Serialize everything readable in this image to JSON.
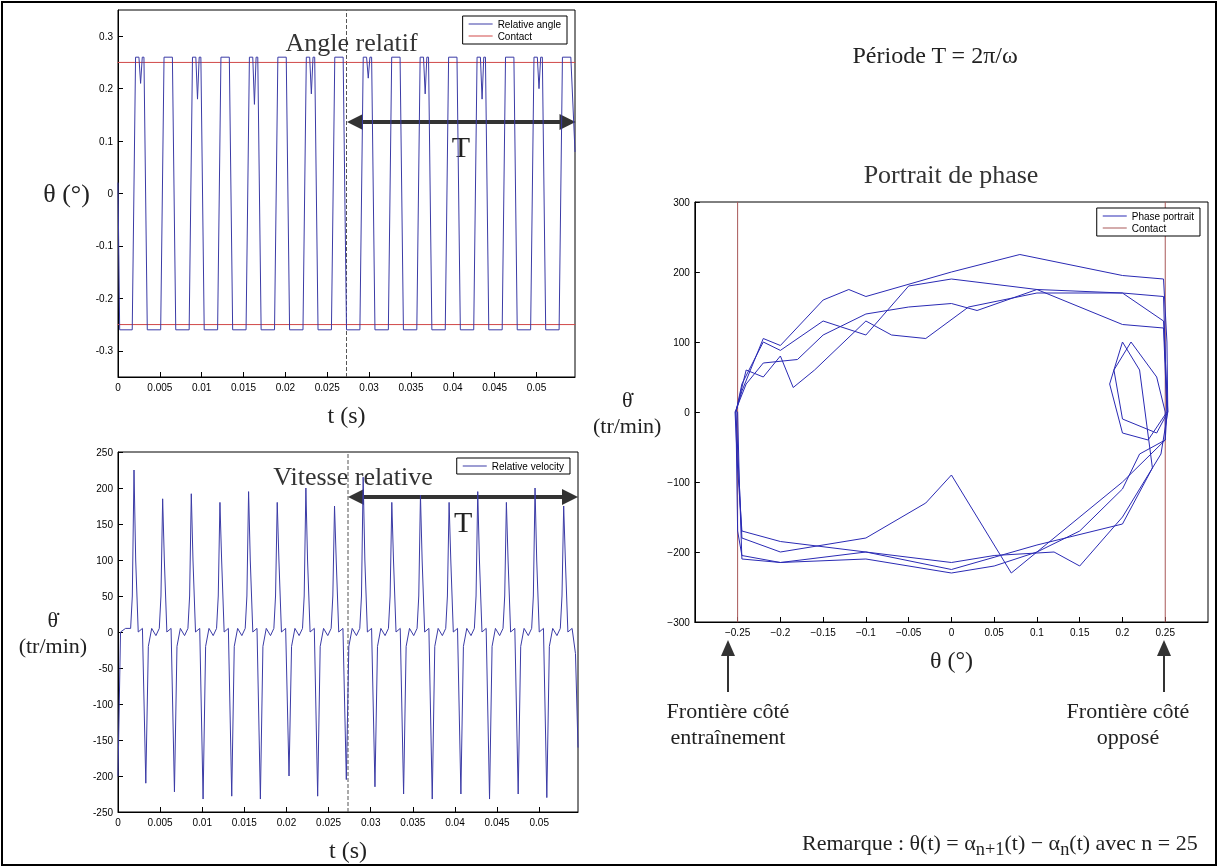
{
  "chart_data": [
    {
      "type": "line",
      "title": "Angle relatif",
      "xlabel": "t (s)",
      "ylabel": "θ (°)",
      "xlim": [
        0,
        0.0546
      ],
      "xticks": [
        0,
        0.005,
        0.01,
        0.015,
        0.02,
        0.025,
        0.03,
        0.035,
        0.04,
        0.045,
        0.05
      ],
      "ylim": [
        -0.35,
        0.35
      ],
      "yticks": [
        -0.3,
        -0.2,
        -0.1,
        0,
        0.1,
        0.2,
        0.3
      ],
      "legend": "top right",
      "series": [
        {
          "name": "Relative angle",
          "color": "#3b3ba6",
          "x": [
            0,
            0.0002,
            0.0017,
            0.0021,
            0.0025,
            0.0027,
            0.0029,
            0.0031,
            0.0035,
            0.0051,
            0.0055,
            0.0065,
            0.0069,
            0.0085,
            0.0089,
            0.0093,
            0.0095,
            0.0097,
            0.0099,
            0.0103,
            0.0119,
            0.0123,
            0.0133,
            0.0137,
            0.0153,
            0.0157,
            0.0161,
            0.0163,
            0.0165,
            0.0167,
            0.0171,
            0.0187,
            0.0191,
            0.0201,
            0.0205,
            0.0221,
            0.0225,
            0.0229,
            0.0231,
            0.0233,
            0.0235,
            0.0239,
            0.0255,
            0.0259,
            0.0269,
            0.0273,
            0.0289,
            0.0293,
            0.0297,
            0.0299,
            0.0301,
            0.0303,
            0.0307,
            0.0323,
            0.0327,
            0.0337,
            0.0341,
            0.0357,
            0.0361,
            0.0365,
            0.0367,
            0.0369,
            0.0371,
            0.0375,
            0.0391,
            0.0395,
            0.0405,
            0.0409,
            0.0425,
            0.0429,
            0.0433,
            0.0435,
            0.0437,
            0.0439,
            0.0443,
            0.0459,
            0.0463,
            0.0473,
            0.0477,
            0.0493,
            0.0497,
            0.0501,
            0.0503,
            0.0505,
            0.0507,
            0.0511,
            0.0527,
            0.0531,
            0.0541,
            0.0546
          ],
          "values": [
            0.02,
            -0.26,
            -0.26,
            0.26,
            0.26,
            0.21,
            0.26,
            0.26,
            -0.26,
            -0.26,
            0.26,
            0.26,
            -0.26,
            -0.26,
            0.26,
            0.26,
            0.18,
            0.26,
            0.26,
            -0.26,
            -0.26,
            0.26,
            0.26,
            -0.26,
            -0.26,
            0.26,
            0.26,
            0.17,
            0.26,
            0.26,
            -0.26,
            -0.26,
            0.26,
            0.26,
            -0.26,
            -0.26,
            0.26,
            0.26,
            0.19,
            0.26,
            0.26,
            -0.26,
            -0.26,
            0.26,
            0.26,
            -0.26,
            -0.26,
            0.26,
            0.26,
            0.22,
            0.26,
            0.26,
            -0.26,
            -0.26,
            0.26,
            0.26,
            -0.26,
            -0.26,
            0.26,
            0.26,
            0.19,
            0.26,
            0.26,
            -0.26,
            -0.26,
            0.26,
            0.26,
            -0.26,
            -0.26,
            0.26,
            0.26,
            0.18,
            0.26,
            0.26,
            -0.26,
            -0.26,
            0.26,
            0.26,
            -0.26,
            -0.26,
            0.26,
            0.26,
            0.2,
            0.26,
            0.26,
            -0.26,
            -0.26,
            0.26,
            0.26,
            0.08
          ]
        },
        {
          "name": "Contact",
          "color": "#d04848",
          "x": [
            0,
            0.0546
          ],
          "values": [
            0.25,
            0.25
          ]
        },
        {
          "color": "#d04848",
          "x": [
            0,
            0.0546
          ],
          "values": [
            -0.25,
            -0.25
          ]
        }
      ],
      "ref_lines": [
        {
          "axis": "x",
          "value": 0.0273,
          "color": "#555555",
          "line_style": "dashed"
        }
      ],
      "annotations": [
        "T"
      ]
    },
    {
      "type": "line",
      "title": "Vitesse relative",
      "xlabel": "t (s)",
      "ylabel": "θ̇ (tr/min)",
      "xlim": [
        0,
        0.0546
      ],
      "xticks": [
        0,
        0.005,
        0.01,
        0.015,
        0.02,
        0.025,
        0.03,
        0.035,
        0.04,
        0.045,
        0.05
      ],
      "ylim": [
        -250,
        250
      ],
      "yticks": [
        -250,
        -200,
        -150,
        -100,
        -50,
        0,
        50,
        100,
        150,
        200,
        250
      ],
      "legend": "top right",
      "series": [
        {
          "name": "Relative velocity",
          "color": "#3b3ba6",
          "x": [
            0,
            0.0003,
            0.0009,
            0.0015,
            0.0017,
            0.0019,
            0.0021,
            0.0024,
            0.0029,
            0.0033,
            0.0036,
            0.004,
            0.0045,
            0.0049,
            0.0051,
            0.0053,
            0.0055,
            0.0058,
            0.0063,
            0.0067,
            0.007,
            0.0074,
            0.0079,
            0.0083,
            0.0085,
            0.0087,
            0.0089,
            0.0092,
            0.0097,
            0.0101,
            0.0104,
            0.0108,
            0.0113,
            0.0117,
            0.0119,
            0.0121,
            0.0123,
            0.0126,
            0.0131,
            0.0135,
            0.0138,
            0.0142,
            0.0147,
            0.0151,
            0.0153,
            0.0155,
            0.0157,
            0.016,
            0.0165,
            0.0169,
            0.0172,
            0.0176,
            0.0181,
            0.0185,
            0.0187,
            0.0189,
            0.0191,
            0.0194,
            0.0199,
            0.0203,
            0.0206,
            0.021,
            0.0215,
            0.0219,
            0.0221,
            0.0223,
            0.0225,
            0.0228,
            0.0233,
            0.0237,
            0.024,
            0.0244,
            0.0249,
            0.0253,
            0.0255,
            0.0257,
            0.0259,
            0.0262,
            0.0267,
            0.0271,
            0.0274,
            0.0278,
            0.0283,
            0.0287,
            0.0289,
            0.0291,
            0.0293,
            0.0296,
            0.0301,
            0.0305,
            0.0308,
            0.0312,
            0.0317,
            0.0321,
            0.0323,
            0.0325,
            0.0327,
            0.033,
            0.0335,
            0.0339,
            0.0342,
            0.0346,
            0.0351,
            0.0355,
            0.0357,
            0.0359,
            0.0361,
            0.0364,
            0.0369,
            0.0373,
            0.0376,
            0.038,
            0.0385,
            0.0389,
            0.0391,
            0.0393,
            0.0395,
            0.0398,
            0.0403,
            0.0407,
            0.041,
            0.0414,
            0.0419,
            0.0423,
            0.0425,
            0.0427,
            0.0429,
            0.0432,
            0.0437,
            0.0441,
            0.0444,
            0.0448,
            0.0453,
            0.0457,
            0.0459,
            0.0461,
            0.0463,
            0.0466,
            0.0471,
            0.0475,
            0.0478,
            0.0482,
            0.0487,
            0.0491,
            0.0493,
            0.0495,
            0.0497,
            0.05,
            0.0505,
            0.0509,
            0.0512,
            0.0516,
            0.0521,
            0.0525,
            0.0527,
            0.0529,
            0.0531,
            0.0534,
            0.0539,
            0.0543,
            0.0546
          ],
          "values": [
            -200,
            0,
            5,
            5,
            50,
            225,
            100,
            0,
            5,
            -210,
            -20,
            5,
            -5,
            5,
            50,
            185,
            100,
            0,
            5,
            -222,
            -20,
            5,
            -5,
            5,
            50,
            192,
            100,
            0,
            5,
            -232,
            -20,
            5,
            -5,
            5,
            50,
            180,
            100,
            0,
            5,
            -228,
            -20,
            5,
            -5,
            5,
            50,
            195,
            100,
            0,
            5,
            -232,
            -20,
            5,
            -5,
            5,
            50,
            180,
            100,
            0,
            5,
            -200,
            -20,
            5,
            -5,
            5,
            50,
            200,
            100,
            0,
            5,
            -228,
            -20,
            5,
            -5,
            5,
            50,
            175,
            100,
            0,
            5,
            -205,
            -20,
            5,
            -5,
            5,
            50,
            215,
            100,
            0,
            5,
            -215,
            -20,
            5,
            -5,
            5,
            50,
            180,
            100,
            0,
            5,
            -225,
            -20,
            5,
            -5,
            5,
            50,
            190,
            100,
            0,
            5,
            -232,
            -20,
            5,
            -5,
            5,
            50,
            180,
            100,
            0,
            5,
            -225,
            -20,
            5,
            -5,
            5,
            50,
            195,
            100,
            0,
            5,
            -232,
            -20,
            5,
            -5,
            5,
            50,
            180,
            100,
            0,
            5,
            -225,
            -20,
            5,
            -5,
            5,
            50,
            200,
            100,
            0,
            5,
            -230,
            -20,
            5,
            -5,
            5,
            50,
            175,
            100,
            0,
            5,
            -30,
            -160
          ]
        }
      ],
      "ref_lines": [
        {
          "axis": "x",
          "value": 0.0273,
          "color": "#555555",
          "line_style": "dashed"
        }
      ],
      "annotations": [
        "T"
      ]
    },
    {
      "type": "line",
      "title": "Portrait de phase",
      "xlabel": "θ (°)",
      "ylabel": "θ̇ (tr/min)",
      "xlim": [
        -0.3,
        0.3
      ],
      "xticks": [
        {
          "value": -0.25,
          "label": "−0.25"
        },
        {
          "value": -0.2,
          "label": "−0.2"
        },
        {
          "value": -0.15,
          "label": "−0.15"
        },
        {
          "value": -0.1,
          "label": "−0.1"
        },
        {
          "value": -0.05,
          "label": "−0.05"
        },
        0,
        0.05,
        0.1,
        0.15,
        0.2,
        0.25
      ],
      "ylim": [
        -300,
        300
      ],
      "yticks": [
        {
          "value": -300,
          "label": "−300"
        },
        {
          "value": -200,
          "label": "−200"
        },
        {
          "value": -100,
          "label": "−100"
        },
        0,
        100,
        200,
        300
      ],
      "legend": "top right",
      "series": [
        {
          "name": "Phase portrait",
          "color": "#2a2ab4",
          "x": [
            -0.252,
            -0.245,
            -0.22,
            -0.2,
            -0.15,
            -0.1,
            -0.05,
            0,
            0.1,
            0.2,
            0.248,
            0.252,
            0.25,
            0.22,
            0.2,
            0.15,
            0.1,
            0.05,
            0,
            -0.1,
            -0.2,
            -0.245,
            -0.25,
            -0.252,
            -0.24,
            -0.22,
            -0.2,
            -0.185,
            -0.16,
            -0.1,
            -0.07,
            -0.03,
            0.02,
            0.1,
            0.2,
            0.248,
            0.253,
            0.24,
            0.2,
            0.19,
            0.21,
            0.24,
            0.25,
            0.25,
            0.2,
            0.1,
            0.07,
            0.02,
            0,
            -0.03,
            -0.1,
            -0.2,
            -0.245,
            -0.252,
            -0.245,
            -0.22,
            -0.2,
            -0.15,
            -0.12,
            -0.1,
            0,
            0.08,
            0.2,
            0.248,
            0.252,
            0.253,
            0.245,
            0.2,
            0.15,
            0.12,
            0.05,
            0,
            -0.1,
            -0.2,
            -0.245,
            -0.25,
            -0.253,
            -0.24,
            -0.22,
            -0.18,
            -0.15,
            -0.1,
            -0.05,
            0,
            0.03,
            0.1,
            0.2,
            0.248,
            0.252,
            0.23,
            0.2,
            0.185,
            0.2,
            0.22,
            0.235,
            0.2,
            0.1,
            0,
            -0.1,
            -0.2,
            -0.245,
            -0.248,
            -0.25
          ],
          "values": [
            0,
            40,
            100,
            88,
            130,
            110,
            180,
            190,
            175,
            170,
            165,
            0,
            -40,
            -60,
            -110,
            -170,
            -200,
            -220,
            -230,
            -210,
            -215,
            -205,
            -170,
            0,
            60,
            50,
            80,
            35,
            60,
            130,
            110,
            105,
            150,
            170,
            170,
            130,
            0,
            -30,
            -10,
            60,
            100,
            50,
            0,
            -40,
            -100,
            -200,
            -230,
            -130,
            -90,
            -130,
            -180,
            -200,
            -180,
            0,
            30,
            105,
            95,
            160,
            175,
            165,
            200,
            225,
            195,
            190,
            100,
            0,
            -60,
            -150,
            -220,
            -200,
            -205,
            -215,
            -200,
            -185,
            -170,
            -80,
            0,
            40,
            70,
            75,
            110,
            140,
            150,
            155,
            145,
            175,
            125,
            120,
            0,
            -40,
            -30,
            40,
            100,
            60,
            -80,
            -160,
            -190,
            -225,
            -200,
            -215,
            -210,
            -100,
            0
          ]
        },
        {
          "name": "Contact",
          "color": "#a85858",
          "x": [
            -0.25,
            -0.25,
            -0.25
          ],
          "values": [
            -300,
            0,
            300
          ]
        },
        {
          "color": "#a85858",
          "x": [
            0.25,
            0.25,
            0.25
          ],
          "values": [
            -300,
            0,
            300
          ]
        }
      ],
      "annotations": [
        "Période    T = 2π/ω",
        "Frontière côté entraînement",
        "Frontière côté opposé",
        "Remarque : θ(t) = α$_{n+1}$(t) − α$_{n}$(t)  avec n = 25"
      ]
    }
  ]
}
